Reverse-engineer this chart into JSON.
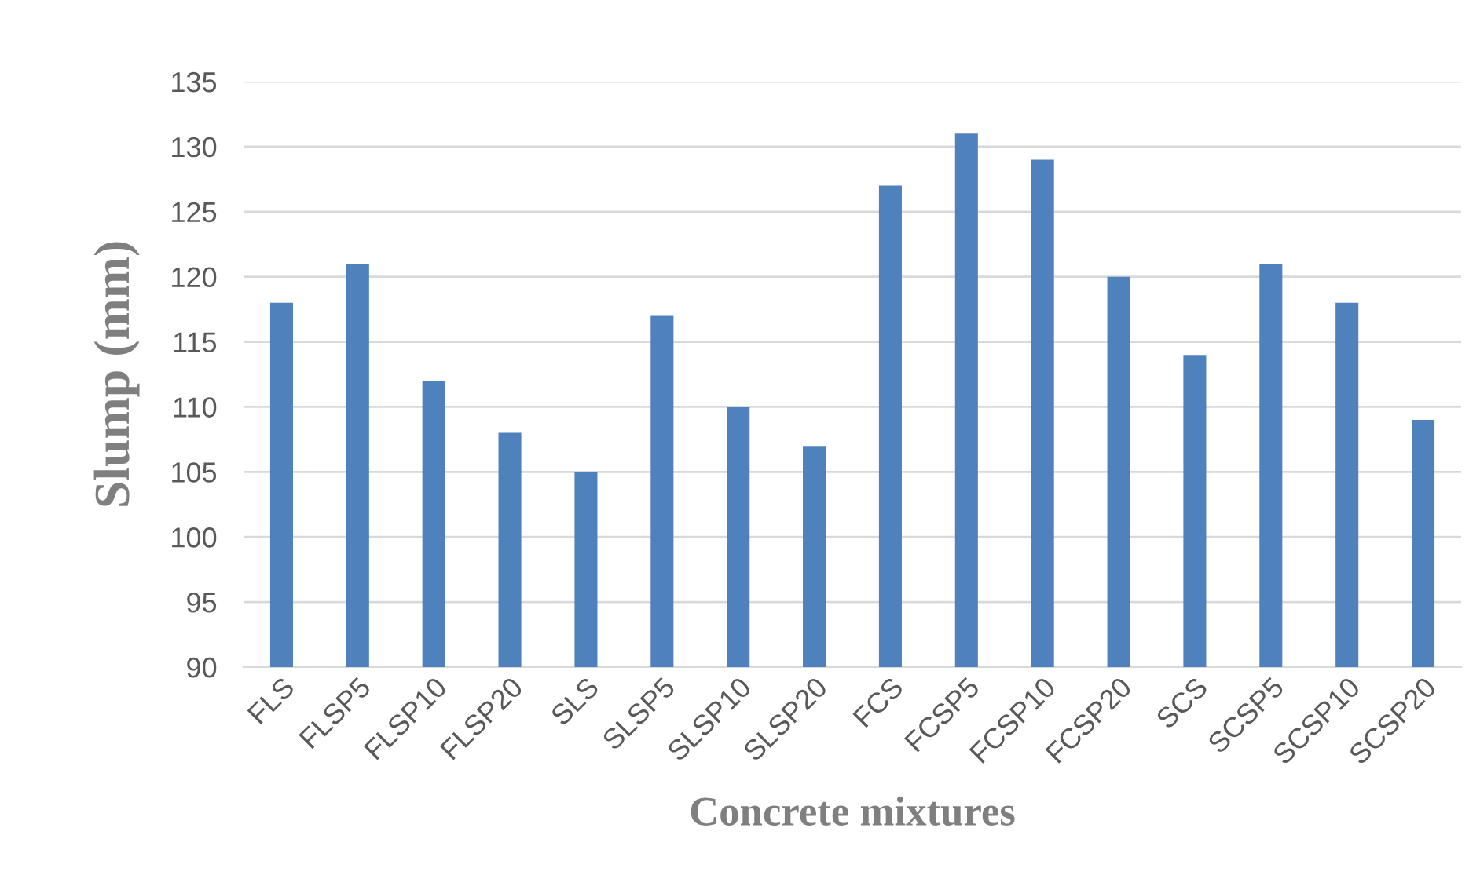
{
  "chart_data": {
    "type": "bar",
    "xlabel": "Concrete mixtures",
    "ylabel": "Slump (mm)",
    "categories": [
      "FLS",
      "FLSP5",
      "FLSP10",
      "FLSP20",
      "SLS",
      "SLSP5",
      "SLSP10",
      "SLSP20",
      "FCS",
      "FCSP5",
      "FCSP10",
      "FCSP20",
      "SCS",
      "SCSP5",
      "SCSP10",
      "SCSP20"
    ],
    "values": [
      118,
      121,
      112,
      108,
      105,
      117,
      110,
      107,
      127,
      131,
      129,
      120,
      114,
      121,
      118,
      109
    ],
    "color": "#4f81bd",
    "ylim": [
      90,
      135
    ],
    "yticks": [
      90,
      95,
      100,
      105,
      110,
      115,
      120,
      125,
      130,
      135
    ],
    "grid": "y"
  }
}
